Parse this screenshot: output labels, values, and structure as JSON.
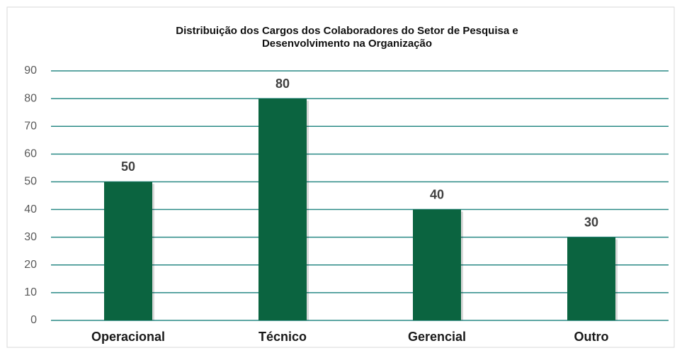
{
  "chart_data": {
    "type": "bar",
    "title": [
      "Distribuição dos Cargos dos Colaboradores do Setor de Pesquisa e",
      "Desenvolvimento  na Organização"
    ],
    "categories": [
      "Operacional",
      "Técnico",
      "Gerencial",
      "Outro"
    ],
    "values": [
      50,
      80,
      40,
      30
    ],
    "color": "#0b6440",
    "ylim": [
      0,
      90
    ],
    "yticks": [
      0,
      10,
      20,
      30,
      40,
      50,
      60,
      70,
      80,
      90
    ],
    "grid": true,
    "grid_color": "#2a8a86"
  }
}
